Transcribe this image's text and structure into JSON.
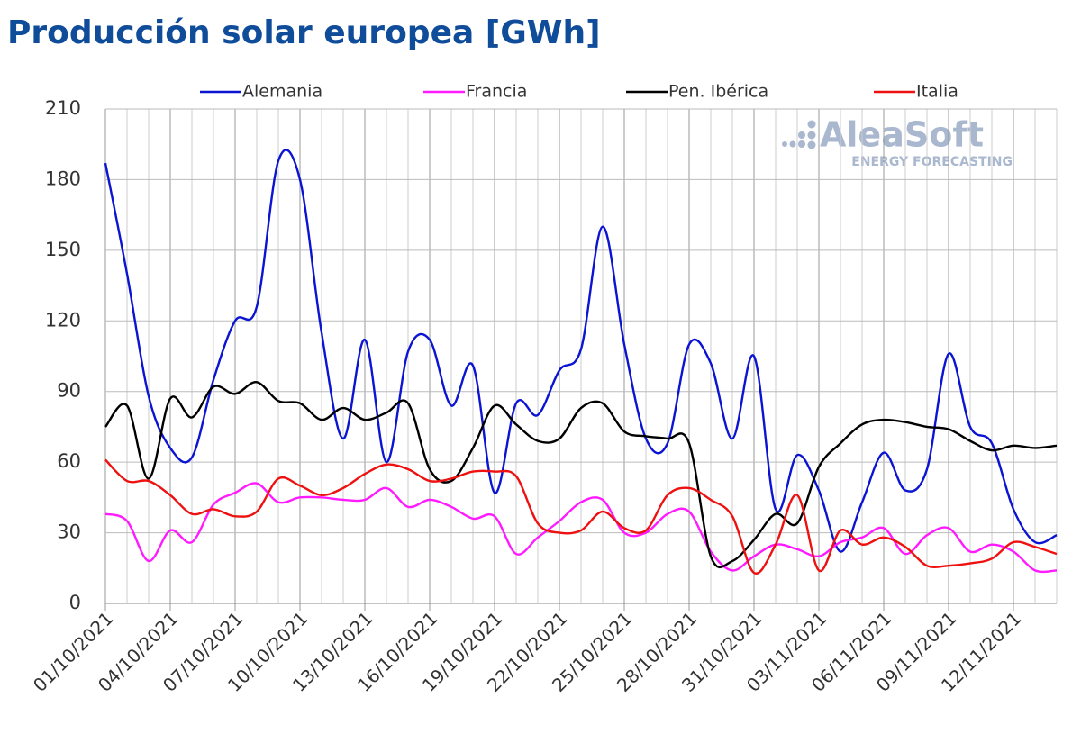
{
  "chart_data": {
    "type": "line",
    "title": "Producción solar europea [GWh]",
    "watermark": {
      "name": "AleaSoft",
      "tagline": "ENERGY FORECASTING"
    },
    "categories": [
      "01/10/2021",
      null,
      null,
      "04/10/2021",
      null,
      null,
      "07/10/2021",
      null,
      null,
      "10/10/2021",
      null,
      null,
      "13/10/2021",
      null,
      null,
      "16/10/2021",
      null,
      null,
      "19/10/2021",
      null,
      null,
      "22/10/2021",
      null,
      null,
      "25/10/2021",
      null,
      null,
      "28/10/2021",
      null,
      null,
      "31/10/2021",
      null,
      null,
      "03/11/2021",
      null,
      null,
      "06/11/2021",
      null,
      null,
      "09/11/2021",
      null,
      null,
      "12/11/2021",
      null,
      null
    ],
    "series": [
      {
        "name": "Alemania",
        "color": "#0a14d2",
        "values": [
          187,
          140,
          88,
          66,
          62,
          95,
          120,
          126,
          188,
          180,
          115,
          70,
          112,
          60,
          107,
          112,
          84,
          101,
          47,
          85,
          80,
          99,
          108,
          160,
          110,
          70,
          68,
          110,
          102,
          70,
          105,
          40,
          63,
          48,
          22,
          43,
          64,
          48,
          57,
          106,
          75,
          68,
          40,
          26,
          29
        ]
      },
      {
        "name": "Francia",
        "color": "#ff1aff",
        "values": [
          38,
          35,
          18,
          31,
          26,
          42,
          47,
          51,
          43,
          45,
          45,
          44,
          44,
          49,
          41,
          44,
          41,
          36,
          37,
          21,
          28,
          35,
          43,
          44,
          30,
          30,
          38,
          39,
          22,
          14,
          20,
          25,
          23,
          20,
          26,
          28,
          32,
          21,
          29,
          32,
          22,
          25,
          22,
          14,
          14
        ]
      },
      {
        "name": "Pen. Ibérica",
        "color": "#000000",
        "values": [
          75,
          84,
          53,
          87,
          79,
          92,
          89,
          94,
          86,
          85,
          78,
          83,
          78,
          81,
          85,
          57,
          52,
          66,
          84,
          76,
          69,
          70,
          83,
          85,
          73,
          71,
          70,
          68,
          20,
          18,
          27,
          38,
          34,
          58,
          68,
          76,
          78,
          77,
          75,
          74,
          69,
          65,
          67,
          66,
          67
        ]
      },
      {
        "name": "Italia",
        "color": "#ee1111",
        "values": [
          61,
          52,
          52,
          46,
          38,
          40,
          37,
          39,
          53,
          50,
          46,
          49,
          55,
          59,
          57,
          52,
          53,
          56,
          56,
          54,
          34,
          30,
          31,
          39,
          32,
          31,
          46,
          49,
          44,
          37,
          13,
          25,
          46,
          14,
          31,
          25,
          28,
          24,
          16,
          16,
          17,
          19,
          26,
          24,
          21
        ]
      }
    ],
    "ylim": [
      0,
      210
    ],
    "yticks": [
      0,
      30,
      60,
      90,
      120,
      150,
      180,
      210
    ],
    "grid": true,
    "legend": "top"
  }
}
